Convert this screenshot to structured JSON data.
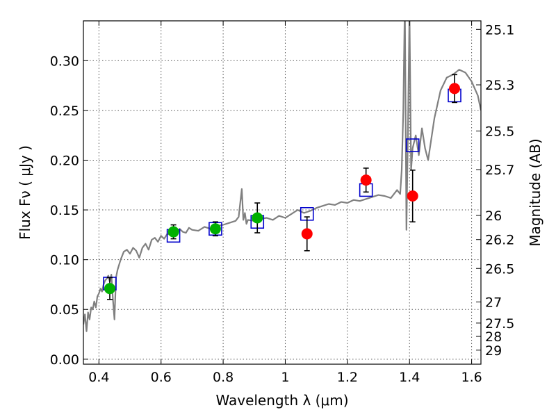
{
  "chart_data": {
    "type": "scatter",
    "xlabel": "Wavelength  λ (μm)",
    "ylabel": "Flux  Fν  ( μJy )",
    "ylabel_right": "Magnitude (AB)",
    "xlim": [
      0.35,
      1.63
    ],
    "ylim": [
      -0.005,
      0.34
    ],
    "grid": true,
    "x_ticks": [
      0.4,
      0.6,
      0.8,
      1.0,
      1.2,
      1.4,
      1.6
    ],
    "x_tick_labels": [
      "0.4",
      "0.6",
      "0.8",
      "1",
      "1.2",
      "1.4",
      "1.6"
    ],
    "y_ticks": [
      0.0,
      0.05,
      0.1,
      0.15,
      0.2,
      0.25,
      0.3
    ],
    "y_tick_labels": [
      "0.00",
      "0.05",
      "0.10",
      "0.15",
      "0.20",
      "0.25",
      "0.30"
    ],
    "mag_ticks": [
      {
        "label": "25.1",
        "flux": 0.3314
      },
      {
        "label": "25.3",
        "flux": 0.2757
      },
      {
        "label": "25.5",
        "flux": 0.2293
      },
      {
        "label": "25.7",
        "flux": 0.1905
      },
      {
        "label": "26",
        "flux": 0.1445
      },
      {
        "label": "26.2",
        "flux": 0.1202
      },
      {
        "label": "26.5",
        "flux": 0.0912
      },
      {
        "label": "27",
        "flux": 0.0575
      },
      {
        "label": "27.5",
        "flux": 0.0363
      },
      {
        "label": "28",
        "flux": 0.0229
      },
      {
        "label": "29",
        "flux": 0.0091
      }
    ],
    "series": [
      {
        "type": "line",
        "color": "#808080",
        "x": [
          0.35,
          0.355,
          0.36,
          0.365,
          0.37,
          0.375,
          0.38,
          0.385,
          0.39,
          0.395,
          0.4,
          0.405,
          0.41,
          0.415,
          0.42,
          0.425,
          0.43,
          0.435,
          0.44,
          0.445,
          0.45,
          0.455,
          0.46,
          0.465,
          0.47,
          0.48,
          0.49,
          0.5,
          0.51,
          0.52,
          0.53,
          0.54,
          0.55,
          0.56,
          0.57,
          0.58,
          0.59,
          0.6,
          0.61,
          0.62,
          0.63,
          0.64,
          0.65,
          0.66,
          0.67,
          0.68,
          0.69,
          0.7,
          0.72,
          0.74,
          0.76,
          0.78,
          0.8,
          0.82,
          0.84,
          0.85,
          0.86,
          0.865,
          0.87,
          0.875,
          0.88,
          0.9,
          0.92,
          0.94,
          0.96,
          0.98,
          1.0,
          1.02,
          1.04,
          1.06,
          1.08,
          1.1,
          1.12,
          1.14,
          1.16,
          1.18,
          1.2,
          1.22,
          1.24,
          1.26,
          1.28,
          1.3,
          1.32,
          1.34,
          1.36,
          1.37,
          1.375,
          1.38,
          1.385,
          1.39,
          1.395,
          1.4,
          1.405,
          1.41,
          1.42,
          1.43,
          1.44,
          1.45,
          1.46,
          1.48,
          1.5,
          1.52,
          1.54,
          1.56,
          1.58,
          1.6,
          1.62,
          1.63
        ],
        "values": [
          0.035,
          0.045,
          0.028,
          0.047,
          0.04,
          0.052,
          0.05,
          0.058,
          0.052,
          0.063,
          0.066,
          0.071,
          0.068,
          0.075,
          0.079,
          0.081,
          0.084,
          0.078,
          0.085,
          0.06,
          0.04,
          0.082,
          0.09,
          0.095,
          0.1,
          0.108,
          0.11,
          0.106,
          0.112,
          0.109,
          0.102,
          0.112,
          0.116,
          0.11,
          0.12,
          0.122,
          0.118,
          0.124,
          0.121,
          0.126,
          0.125,
          0.129,
          0.124,
          0.131,
          0.128,
          0.127,
          0.132,
          0.13,
          0.129,
          0.133,
          0.131,
          0.134,
          0.135,
          0.137,
          0.139,
          0.143,
          0.171,
          0.14,
          0.147,
          0.136,
          0.14,
          0.139,
          0.141,
          0.142,
          0.14,
          0.144,
          0.142,
          0.146,
          0.15,
          0.147,
          0.149,
          0.152,
          0.154,
          0.156,
          0.155,
          0.158,
          0.157,
          0.16,
          0.159,
          0.161,
          0.163,
          0.165,
          0.164,
          0.162,
          0.17,
          0.166,
          0.19,
          0.25,
          0.36,
          0.13,
          0.23,
          0.35,
          0.19,
          0.212,
          0.225,
          0.205,
          0.232,
          0.212,
          0.2,
          0.242,
          0.27,
          0.283,
          0.286,
          0.291,
          0.288,
          0.279,
          0.265,
          0.25
        ]
      },
      {
        "type": "marker-square",
        "color": "#0000cc",
        "x": [
          0.435,
          0.64,
          0.775,
          0.91,
          1.07,
          1.26,
          1.41,
          1.545
        ],
        "values": [
          0.076,
          0.124,
          0.131,
          0.138,
          0.146,
          0.17,
          0.215,
          0.265
        ]
      },
      {
        "type": "marker-circle",
        "color": "#00b000",
        "x": [
          0.435,
          0.64,
          0.775,
          0.91
        ],
        "values": [
          0.071,
          0.128,
          0.131,
          0.142
        ],
        "yerr": [
          0.011,
          0.007,
          0.007,
          0.015
        ]
      },
      {
        "type": "marker-circle",
        "color": "#ff0000",
        "x": [
          1.07,
          1.26,
          1.41,
          1.545
        ],
        "values": [
          0.126,
          0.18,
          0.164,
          0.272
        ],
        "yerr": [
          0.017,
          0.012,
          0.026,
          0.014
        ]
      }
    ]
  }
}
